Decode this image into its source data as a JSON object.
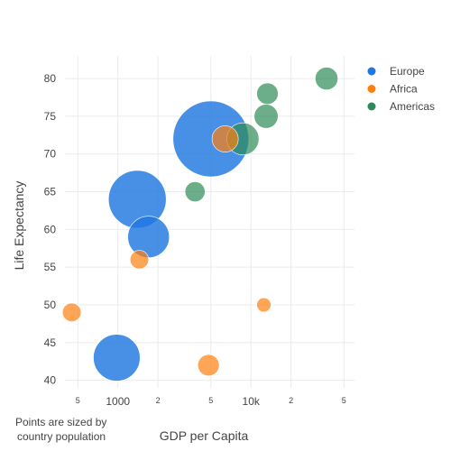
{
  "chart_data": {
    "type": "scatter",
    "title": "",
    "xlabel": "GDP per Capita",
    "ylabel": "Life Expectancy",
    "x_scale": "log",
    "xlim": [
      400,
      60000
    ],
    "ylim": [
      39,
      83
    ],
    "y_ticks": [
      40,
      45,
      50,
      55,
      60,
      65,
      70,
      75,
      80
    ],
    "x_ticks_major": [
      {
        "value": 1000,
        "label": "1000"
      },
      {
        "value": 10000,
        "label": "10k"
      }
    ],
    "x_ticks_minor": [
      {
        "value": 500,
        "label": "5"
      },
      {
        "value": 2000,
        "label": "2"
      },
      {
        "value": 5000,
        "label": "5"
      },
      {
        "value": 20000,
        "label": "2"
      },
      {
        "value": 50000,
        "label": "5"
      }
    ],
    "grid": true,
    "legend_position": "top-right",
    "annotation_lines": [
      "Points are sized by",
      "country population"
    ],
    "series": [
      {
        "name": "Europe",
        "color": "#1f77e0",
        "points": [
          {
            "x": 5000,
            "y": 72,
            "size": 1.0
          },
          {
            "x": 1400,
            "y": 64,
            "size": 0.58
          },
          {
            "x": 1700,
            "y": 59,
            "size": 0.3
          },
          {
            "x": 980,
            "y": 43,
            "size": 0.38
          }
        ]
      },
      {
        "name": "Africa",
        "color": "#ff7f0e",
        "points": [
          {
            "x": 6400,
            "y": 72,
            "size": 0.12
          },
          {
            "x": 1450,
            "y": 56,
            "size": 0.06
          },
          {
            "x": 450,
            "y": 49,
            "size": 0.06
          },
          {
            "x": 12500,
            "y": 50,
            "size": 0.035
          },
          {
            "x": 4800,
            "y": 42,
            "size": 0.08
          }
        ]
      },
      {
        "name": "Americas",
        "color": "#2e8b57",
        "points": [
          {
            "x": 8700,
            "y": 72,
            "size": 0.18
          },
          {
            "x": 13000,
            "y": 75,
            "size": 0.1
          },
          {
            "x": 13300,
            "y": 78,
            "size": 0.08
          },
          {
            "x": 37000,
            "y": 80,
            "size": 0.09
          },
          {
            "x": 3800,
            "y": 65,
            "size": 0.07
          }
        ]
      }
    ]
  }
}
